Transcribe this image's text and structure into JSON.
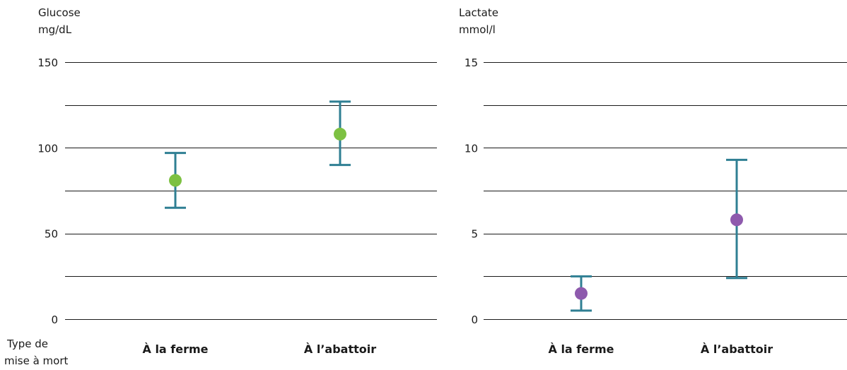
{
  "x_axis_label": [
    "Type de",
    "mise à mort"
  ],
  "chart_data": [
    {
      "type": "scatter",
      "title": "",
      "ylabel": [
        "Glucose",
        "mg/dL"
      ],
      "xlabel": "Type de mise à mort",
      "categories": [
        "À la ferme",
        "À l’abattoir"
      ],
      "ylim": [
        0,
        150
      ],
      "yticks": [
        0,
        50,
        100,
        150
      ],
      "gridlines": [
        0,
        25,
        50,
        75,
        100,
        125,
        150
      ],
      "values": [
        81,
        108
      ],
      "error_low": [
        65,
        90
      ],
      "error_high": [
        97,
        127
      ],
      "point_color": "#7dc142",
      "error_color": "#2f7f93"
    },
    {
      "type": "scatter",
      "title": "",
      "ylabel": [
        "Lactate",
        "mmol/l"
      ],
      "xlabel": "Type de mise à mort",
      "categories": [
        "À la ferme",
        "À l’abattoir"
      ],
      "ylim": [
        0,
        15
      ],
      "yticks": [
        0,
        5,
        10,
        15
      ],
      "gridlines": [
        0,
        2.5,
        5,
        7.5,
        10,
        12.5,
        15
      ],
      "values": [
        1.5,
        5.8
      ],
      "error_low": [
        0.5,
        2.4
      ],
      "error_high": [
        2.5,
        9.3
      ],
      "point_color": "#8e5aad",
      "error_color": "#2f7f93"
    }
  ]
}
